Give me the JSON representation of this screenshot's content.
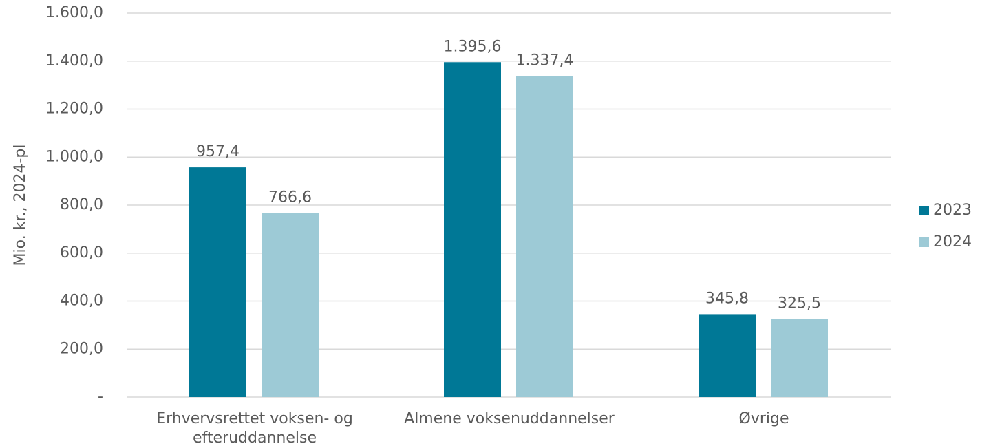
{
  "chart_data": {
    "type": "bar",
    "y_label": "Mio. kr., 2024-pl",
    "categories": [
      "Erhvervsrettet voksen- og efteruddannelse",
      "Almene voksenuddannelser",
      "Øvrige"
    ],
    "series": [
      {
        "name": "2023",
        "color": "#007896",
        "values": [
          957.4,
          1395.6,
          345.8
        ],
        "value_labels": [
          "957,4",
          "1.395,6",
          "345,8"
        ]
      },
      {
        "name": "2024",
        "color": "#9dcad6",
        "values": [
          766.6,
          1337.4,
          325.5
        ],
        "value_labels": [
          "766,6",
          "1.337,4",
          "325,5"
        ]
      }
    ],
    "ylim": [
      0,
      1600
    ],
    "yticks": [
      {
        "value": 0,
        "label": "-"
      },
      {
        "value": 200,
        "label": "200,0"
      },
      {
        "value": 400,
        "label": "400,0"
      },
      {
        "value": 600,
        "label": "600,0"
      },
      {
        "value": 800,
        "label": "800,0"
      },
      {
        "value": 1000,
        "label": "1.000,0"
      },
      {
        "value": 1200,
        "label": "1.200,0"
      },
      {
        "value": 1400,
        "label": "1.400,0"
      },
      {
        "value": 1600,
        "label": "1.600,0"
      }
    ],
    "grid": true,
    "legend": "right"
  }
}
